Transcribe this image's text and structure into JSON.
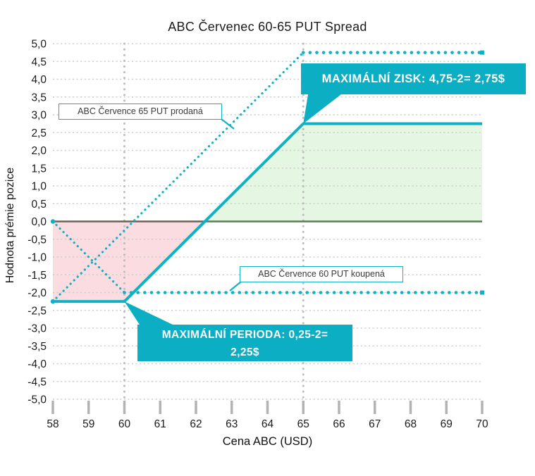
{
  "title": "ABC Červenec 60-65 PUT Spread",
  "axes": {
    "x_title": "Cena ABC (USD)",
    "y_title": "Hodnota prémie pozice"
  },
  "annotations": {
    "max_profit_label": "MAXIMÁLNÍ ZISK: 4,75-2= 2,75$",
    "max_profit_anchor": [
      65,
      2.75
    ],
    "max_loss_line1": "MAXIMÁLNÍ PERIODA: 0,25-2=",
    "max_loss_line2": "2,25$",
    "max_loss_anchor": [
      60,
      -2.25
    ],
    "sold_put_label": "ABC Července 65 PUT prodaná",
    "bought_put_label": "ABC Července 60 PUT koupená"
  },
  "colors": {
    "teal": "#10b1c5",
    "callout_bg": "#0caec3",
    "loss_fill": "#fadce1",
    "profit_fill": "#e5f7e3",
    "grid": "#cbcbcb",
    "guide": "#bdbdbd",
    "zero_left": "#6e6156",
    "zero_right": "#567f50"
  },
  "chart_data": {
    "type": "line",
    "title": "ABC Červenec 60-65 PUT Spread",
    "xlabel": "Cena ABC (USD)",
    "ylabel": "Hodnota prémie pozice",
    "xlim": [
      58,
      70
    ],
    "ylim": [
      -5,
      5
    ],
    "x_tick_step": 1,
    "y_tick_step": 0.5,
    "decimal_comma": true,
    "grid": "horizontal dotted every 0.5",
    "guide_x": [
      60,
      65
    ],
    "breakeven": 62.25,
    "series": [
      {
        "name": "spread-payoff",
        "style": "solid",
        "points": [
          [
            58,
            -2.25
          ],
          [
            60,
            -2.25
          ],
          [
            65,
            2.75
          ],
          [
            70,
            2.75
          ]
        ]
      },
      {
        "name": "put65-sold",
        "label": "ABC Července 65 PUT prodaná",
        "style": "dotted",
        "points": [
          [
            58,
            -2.25
          ],
          [
            65,
            4.75
          ],
          [
            70,
            4.75
          ]
        ]
      },
      {
        "name": "put60-bought",
        "label": "ABC Července 60 PUT koupená",
        "style": "dotted",
        "points": [
          [
            58,
            0
          ],
          [
            60,
            -2
          ],
          [
            70,
            -2
          ]
        ]
      }
    ],
    "fills": [
      {
        "name": "loss-area",
        "color": "#fadce1",
        "points": [
          [
            58,
            0
          ],
          [
            62.25,
            0
          ],
          [
            60,
            -2.25
          ],
          [
            58,
            -2.25
          ]
        ]
      },
      {
        "name": "profit-area",
        "color": "#e5f7e3",
        "points": [
          [
            62.25,
            0
          ],
          [
            65,
            2.75
          ],
          [
            70,
            2.75
          ],
          [
            70,
            0
          ]
        ]
      }
    ],
    "zero_line_segments": [
      {
        "color": "#6e6156",
        "from": 58,
        "to": 62.25
      },
      {
        "color": "#567f50",
        "from": 62.25,
        "to": 70
      }
    ]
  }
}
